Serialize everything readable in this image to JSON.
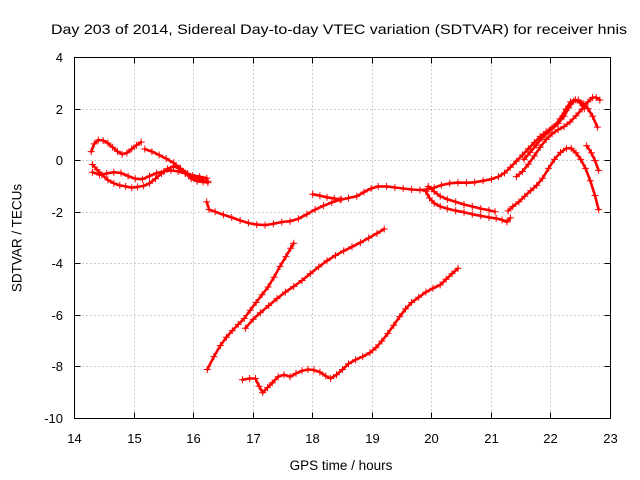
{
  "colors": {
    "points": "#ff0000",
    "grid": "#a0a0a0",
    "axis": "#000000",
    "background": "#ffffff"
  },
  "chart_data": {
    "type": "scatter",
    "title": "Day 203 of 2014, Sidereal Day-to-day VTEC variation (SDTVAR) for receiver hnis",
    "xlabel": "GPS time / hours",
    "ylabel": "SDTVAR / TECUs",
    "xlim": [
      14,
      23
    ],
    "ylim": [
      -10,
      4
    ],
    "x_ticks": [
      14,
      15,
      16,
      17,
      18,
      19,
      20,
      21,
      22,
      23
    ],
    "y_ticks": [
      -10,
      -8,
      -6,
      -4,
      -2,
      0,
      2,
      4
    ],
    "grid": true,
    "series": [
      {
        "points": [
          [
            14.28,
            0.35
          ],
          [
            14.33,
            0.65
          ],
          [
            14.4,
            0.8
          ],
          [
            14.48,
            0.78
          ],
          [
            14.56,
            0.68
          ],
          [
            14.64,
            0.52
          ],
          [
            14.72,
            0.36
          ],
          [
            14.8,
            0.25
          ],
          [
            14.88,
            0.3
          ],
          [
            14.96,
            0.45
          ],
          [
            15.04,
            0.6
          ],
          [
            15.12,
            0.72
          ]
        ]
      },
      {
        "points": [
          [
            15.18,
            0.45
          ],
          [
            15.3,
            0.35
          ],
          [
            15.42,
            0.22
          ],
          [
            15.54,
            0.08
          ],
          [
            15.66,
            -0.08
          ],
          [
            15.78,
            -0.3
          ],
          [
            15.9,
            -0.5
          ],
          [
            16.02,
            -0.65
          ],
          [
            16.14,
            -0.75
          ],
          [
            16.24,
            -0.8
          ]
        ]
      },
      {
        "points": [
          [
            14.3,
            -0.45
          ],
          [
            14.42,
            -0.55
          ],
          [
            14.54,
            -0.5
          ],
          [
            14.66,
            -0.45
          ],
          [
            14.78,
            -0.48
          ],
          [
            14.9,
            -0.6
          ],
          [
            15.02,
            -0.7
          ],
          [
            15.14,
            -0.72
          ],
          [
            15.26,
            -0.6
          ],
          [
            15.38,
            -0.48
          ],
          [
            15.5,
            -0.42
          ],
          [
            15.62,
            -0.38
          ],
          [
            15.74,
            -0.42
          ],
          [
            15.86,
            -0.5
          ],
          [
            15.98,
            -0.58
          ],
          [
            16.1,
            -0.62
          ],
          [
            16.22,
            -0.68
          ]
        ]
      },
      {
        "points": [
          [
            14.3,
            -0.15
          ],
          [
            14.38,
            -0.35
          ],
          [
            14.46,
            -0.55
          ],
          [
            14.56,
            -0.75
          ],
          [
            14.66,
            -0.88
          ],
          [
            14.76,
            -0.96
          ],
          [
            14.86,
            -1.0
          ],
          [
            14.96,
            -1.05
          ],
          [
            15.06,
            -1.02
          ],
          [
            15.16,
            -0.98
          ],
          [
            15.26,
            -0.88
          ],
          [
            15.36,
            -0.7
          ],
          [
            15.46,
            -0.5
          ],
          [
            15.56,
            -0.32
          ],
          [
            15.66,
            -0.22
          ],
          [
            15.76,
            -0.3
          ],
          [
            15.86,
            -0.48
          ],
          [
            15.96,
            -0.7
          ],
          [
            16.06,
            -0.8
          ],
          [
            16.16,
            -0.82
          ],
          [
            16.24,
            -0.85
          ]
        ]
      },
      {
        "points": [
          [
            16.22,
            -1.6
          ],
          [
            16.26,
            -1.9
          ],
          [
            16.36,
            -1.98
          ],
          [
            16.5,
            -2.1
          ],
          [
            16.64,
            -2.2
          ],
          [
            16.78,
            -2.32
          ],
          [
            16.92,
            -2.42
          ],
          [
            17.06,
            -2.48
          ],
          [
            17.2,
            -2.5
          ],
          [
            17.34,
            -2.45
          ],
          [
            17.48,
            -2.38
          ],
          [
            17.62,
            -2.35
          ],
          [
            17.76,
            -2.25
          ],
          [
            17.9,
            -2.08
          ],
          [
            18.04,
            -1.9
          ],
          [
            18.18,
            -1.75
          ],
          [
            18.32,
            -1.62
          ],
          [
            18.46,
            -1.52
          ],
          [
            18.6,
            -1.45
          ],
          [
            18.74,
            -1.38
          ],
          [
            18.86,
            -1.22
          ],
          [
            18.98,
            -1.08
          ],
          [
            19.1,
            -1.0
          ],
          [
            19.24,
            -1.0
          ],
          [
            19.38,
            -1.04
          ],
          [
            19.52,
            -1.08
          ],
          [
            19.66,
            -1.12
          ],
          [
            19.8,
            -1.14
          ],
          [
            19.92,
            -1.12
          ],
          [
            20.04,
            -1.05
          ],
          [
            20.16,
            -0.95
          ],
          [
            20.3,
            -0.88
          ],
          [
            20.44,
            -0.85
          ],
          [
            20.58,
            -0.86
          ],
          [
            20.72,
            -0.84
          ],
          [
            20.86,
            -0.78
          ],
          [
            21.0,
            -0.72
          ],
          [
            21.12,
            -0.62
          ],
          [
            21.22,
            -0.48
          ],
          [
            21.32,
            -0.26
          ],
          [
            21.42,
            -0.02
          ],
          [
            21.52,
            0.22
          ],
          [
            21.62,
            0.46
          ],
          [
            21.72,
            0.7
          ],
          [
            21.82,
            0.94
          ],
          [
            21.92,
            1.12
          ],
          [
            22.02,
            1.28
          ],
          [
            22.12,
            1.44
          ],
          [
            22.22,
            1.72
          ],
          [
            22.3,
            2.05
          ],
          [
            22.38,
            2.3
          ],
          [
            22.46,
            2.35
          ],
          [
            22.54,
            2.22
          ],
          [
            22.62,
            2.02
          ],
          [
            22.7,
            1.72
          ],
          [
            22.78,
            1.3
          ]
        ]
      },
      {
        "points": [
          [
            18.0,
            -1.3
          ],
          [
            18.12,
            -1.36
          ],
          [
            18.24,
            -1.42
          ],
          [
            18.36,
            -1.47
          ],
          [
            18.48,
            -1.5
          ]
        ]
      },
      {
        "points": [
          [
            19.9,
            -1.2
          ],
          [
            19.96,
            -1.45
          ],
          [
            20.04,
            -1.65
          ],
          [
            20.14,
            -1.78
          ],
          [
            20.26,
            -1.86
          ],
          [
            20.4,
            -1.94
          ],
          [
            20.54,
            -2.0
          ],
          [
            20.68,
            -2.08
          ],
          [
            20.82,
            -2.14
          ],
          [
            20.96,
            -2.2
          ],
          [
            21.08,
            -2.24
          ],
          [
            21.18,
            -2.3
          ],
          [
            21.26,
            -2.38
          ],
          [
            21.32,
            -2.22
          ]
        ]
      },
      {
        "points": [
          [
            19.94,
            -1.0
          ],
          [
            20.04,
            -1.2
          ],
          [
            20.14,
            -1.38
          ],
          [
            20.26,
            -1.5
          ],
          [
            20.4,
            -1.6
          ],
          [
            20.54,
            -1.7
          ],
          [
            20.68,
            -1.78
          ],
          [
            20.82,
            -1.86
          ],
          [
            20.96,
            -1.92
          ],
          [
            21.06,
            -1.98
          ]
        ]
      },
      {
        "points": [
          [
            21.42,
            -0.62
          ],
          [
            21.52,
            -0.42
          ],
          [
            21.62,
            -0.14
          ],
          [
            21.72,
            0.18
          ],
          [
            21.82,
            0.52
          ],
          [
            21.92,
            0.82
          ],
          [
            22.02,
            1.04
          ],
          [
            22.12,
            1.2
          ],
          [
            22.22,
            1.32
          ],
          [
            22.32,
            1.5
          ],
          [
            22.42,
            1.74
          ],
          [
            22.52,
            2.0
          ],
          [
            22.62,
            2.28
          ],
          [
            22.7,
            2.45
          ],
          [
            22.76,
            2.45
          ],
          [
            22.82,
            2.35
          ]
        ]
      },
      {
        "points": [
          [
            21.55,
            0.05
          ],
          [
            21.65,
            0.32
          ],
          [
            21.75,
            0.6
          ],
          [
            21.85,
            0.88
          ],
          [
            21.95,
            1.1
          ],
          [
            22.05,
            1.32
          ],
          [
            22.15,
            1.62
          ],
          [
            22.25,
            2.0
          ],
          [
            22.33,
            2.28
          ],
          [
            22.41,
            2.36
          ],
          [
            22.49,
            2.24
          ],
          [
            22.56,
            2.02
          ]
        ]
      },
      {
        "points": [
          [
            21.28,
            -1.95
          ],
          [
            21.36,
            -1.78
          ],
          [
            21.46,
            -1.6
          ],
          [
            21.56,
            -1.38
          ],
          [
            21.66,
            -1.16
          ],
          [
            21.76,
            -0.96
          ],
          [
            21.86,
            -0.68
          ],
          [
            21.96,
            -0.3
          ],
          [
            22.06,
            0.05
          ],
          [
            22.16,
            0.32
          ],
          [
            22.26,
            0.48
          ],
          [
            22.34,
            0.48
          ],
          [
            22.42,
            0.3
          ],
          [
            22.5,
            0.05
          ],
          [
            22.58,
            -0.3
          ],
          [
            22.66,
            -0.78
          ],
          [
            22.74,
            -1.35
          ],
          [
            22.8,
            -1.9
          ]
        ]
      },
      {
        "points": [
          [
            22.6,
            0.58
          ],
          [
            22.68,
            0.3
          ],
          [
            22.74,
            0.0
          ],
          [
            22.8,
            -0.38
          ]
        ]
      },
      {
        "points": [
          [
            16.23,
            -8.1
          ],
          [
            16.34,
            -7.6
          ],
          [
            16.45,
            -7.17
          ],
          [
            16.55,
            -6.85
          ],
          [
            16.65,
            -6.59
          ],
          [
            16.75,
            -6.35
          ],
          [
            16.85,
            -6.12
          ],
          [
            16.95,
            -5.8
          ],
          [
            17.05,
            -5.5
          ],
          [
            17.15,
            -5.2
          ],
          [
            17.25,
            -4.9
          ],
          [
            17.35,
            -4.52
          ],
          [
            17.45,
            -4.1
          ],
          [
            17.55,
            -3.72
          ],
          [
            17.63,
            -3.4
          ],
          [
            17.68,
            -3.2
          ]
        ]
      },
      {
        "points": [
          [
            16.87,
            -6.5
          ],
          [
            17.0,
            -6.15
          ],
          [
            17.12,
            -5.9
          ],
          [
            17.26,
            -5.62
          ],
          [
            17.4,
            -5.35
          ],
          [
            17.54,
            -5.1
          ],
          [
            17.68,
            -4.88
          ],
          [
            17.82,
            -4.65
          ],
          [
            17.96,
            -4.38
          ],
          [
            18.1,
            -4.12
          ],
          [
            18.24,
            -3.88
          ],
          [
            18.38,
            -3.68
          ],
          [
            18.52,
            -3.5
          ],
          [
            18.66,
            -3.34
          ],
          [
            18.8,
            -3.18
          ],
          [
            18.94,
            -3.0
          ],
          [
            19.08,
            -2.82
          ],
          [
            19.2,
            -2.65
          ]
        ]
      },
      {
        "points": [
          [
            16.82,
            -8.5
          ],
          [
            16.94,
            -8.45
          ],
          [
            17.04,
            -8.45
          ],
          [
            17.1,
            -8.75
          ],
          [
            17.16,
            -9.0
          ],
          [
            17.24,
            -8.8
          ],
          [
            17.32,
            -8.62
          ],
          [
            17.42,
            -8.38
          ],
          [
            17.52,
            -8.3
          ],
          [
            17.62,
            -8.38
          ],
          [
            17.72,
            -8.25
          ],
          [
            17.82,
            -8.15
          ],
          [
            17.92,
            -8.1
          ],
          [
            18.02,
            -8.12
          ],
          [
            18.12,
            -8.2
          ],
          [
            18.22,
            -8.35
          ],
          [
            18.3,
            -8.45
          ],
          [
            18.4,
            -8.3
          ],
          [
            18.5,
            -8.1
          ],
          [
            18.6,
            -7.88
          ],
          [
            18.72,
            -7.72
          ],
          [
            18.84,
            -7.6
          ],
          [
            18.96,
            -7.45
          ],
          [
            19.06,
            -7.25
          ],
          [
            19.16,
            -7.0
          ],
          [
            19.26,
            -6.7
          ],
          [
            19.36,
            -6.38
          ],
          [
            19.46,
            -6.05
          ],
          [
            19.56,
            -5.75
          ],
          [
            19.66,
            -5.5
          ],
          [
            19.78,
            -5.3
          ],
          [
            19.9,
            -5.1
          ],
          [
            20.02,
            -4.95
          ],
          [
            20.14,
            -4.82
          ],
          [
            20.24,
            -4.6
          ],
          [
            20.34,
            -4.38
          ],
          [
            20.44,
            -4.18
          ]
        ]
      }
    ]
  }
}
